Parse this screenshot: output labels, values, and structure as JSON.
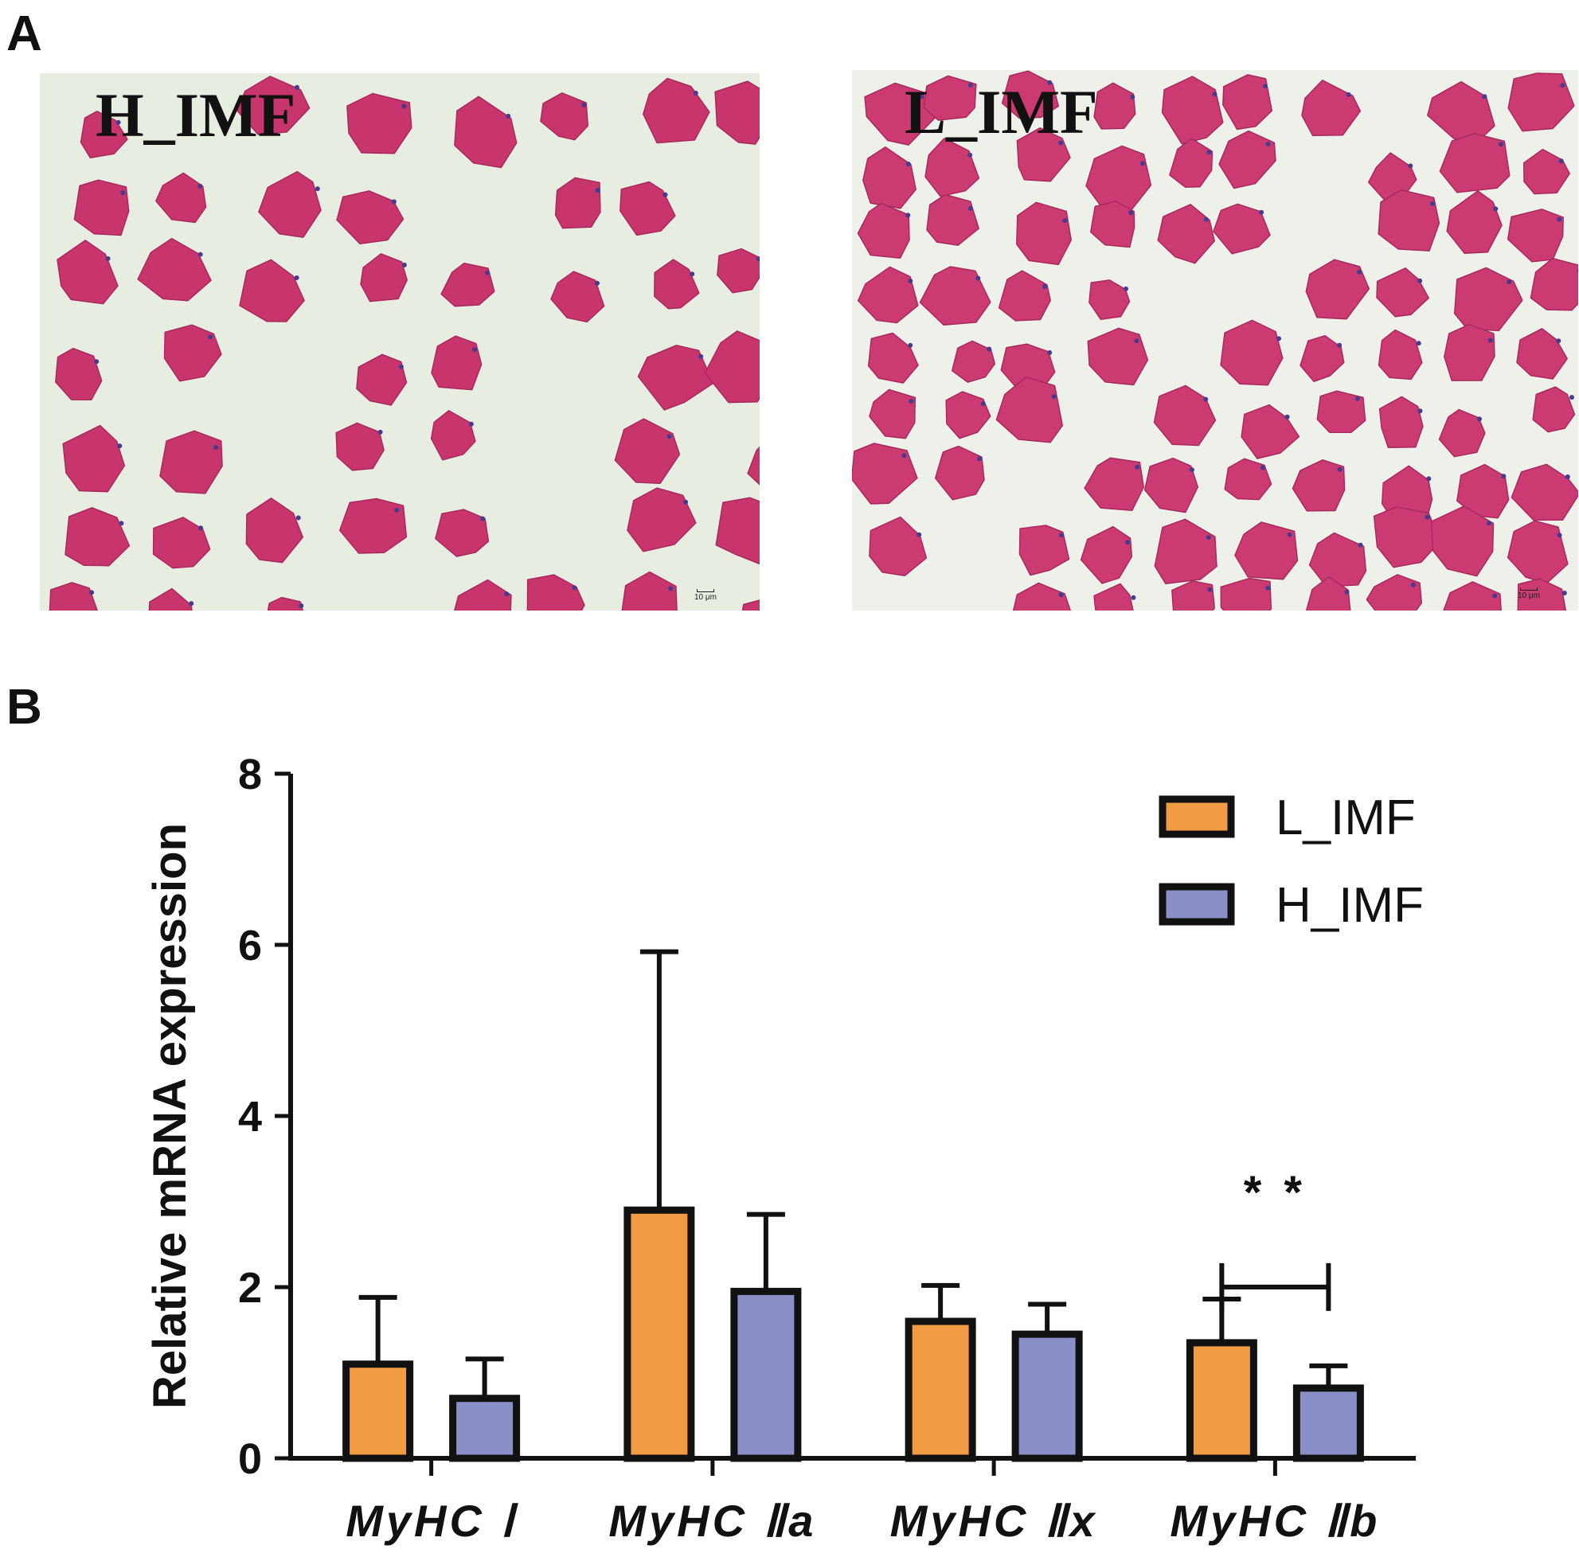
{
  "panels": {
    "a_letter": "A",
    "b_letter": "B"
  },
  "micrographs": [
    {
      "label": "H_IMF",
      "scale": "10 μm",
      "stain_color": "#c8346c",
      "background": "#e8ede2"
    },
    {
      "label": "L_IMF",
      "scale": "10 μm",
      "stain_color": "#cc3a72",
      "background": "#eef1ea"
    }
  ],
  "chart_data": {
    "type": "bar",
    "title": "",
    "xlabel": "",
    "ylabel": "Relative mRNA expression",
    "ylim": [
      0,
      8
    ],
    "yticks": [
      0,
      2,
      4,
      6,
      8
    ],
    "categories": [
      "MyHC Ⅰ",
      "MyHC Ⅱa",
      "MyHC Ⅱx",
      "MyHC Ⅱb"
    ],
    "series": [
      {
        "name": "L_IMF",
        "color": "#f29b45",
        "values": [
          1.1,
          2.9,
          1.6,
          1.35
        ],
        "errors": [
          0.78,
          3.02,
          0.42,
          0.51
        ]
      },
      {
        "name": "H_IMF",
        "color": "#8b8fc8",
        "values": [
          0.7,
          1.95,
          1.45,
          0.82
        ],
        "errors": [
          0.46,
          0.9,
          0.35,
          0.26
        ]
      }
    ],
    "legend": "top-right",
    "grid": false,
    "annotations": [
      {
        "text": "* *",
        "category": "MyHC Ⅱb",
        "bracket_value": 1.35,
        "text_value": 3.2
      }
    ]
  }
}
